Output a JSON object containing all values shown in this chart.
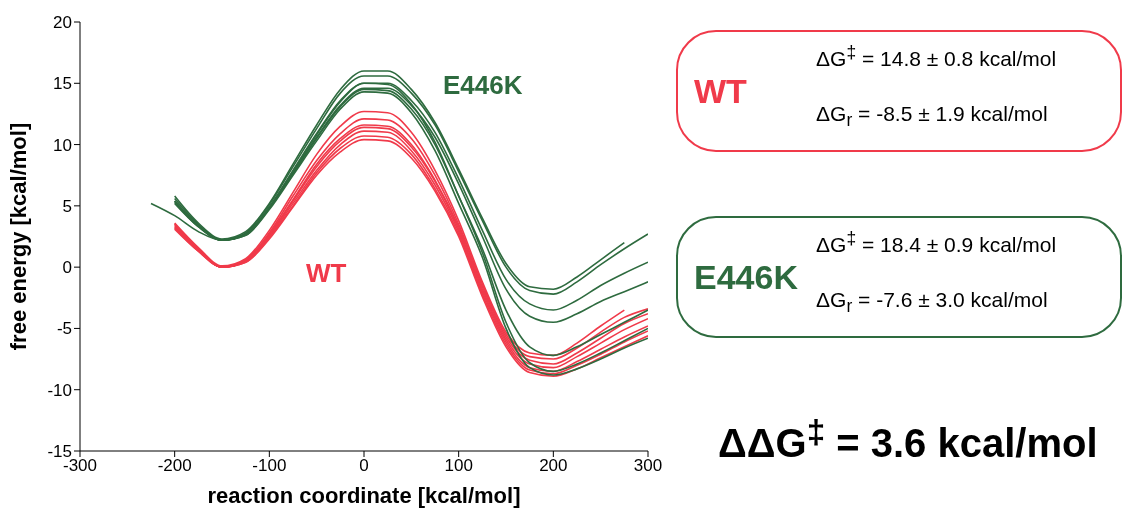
{
  "chart_data": {
    "type": "line",
    "xlabel": "reaction coordinate [kcal/mol]",
    "ylabel": "free energy [kcal/mol]",
    "x": [
      -225,
      -200,
      -175,
      -150,
      -125,
      -100,
      -75,
      -50,
      -25,
      0,
      25,
      50,
      75,
      100,
      125,
      150,
      175,
      200,
      225,
      250,
      275,
      300
    ],
    "xlim": [
      -300,
      300
    ],
    "xticks": [
      -300,
      -200,
      -100,
      0,
      100,
      200,
      300
    ],
    "ylim": [
      -15,
      20
    ],
    "yticks": [
      -15,
      -10,
      -5,
      0,
      5,
      10,
      15,
      20
    ],
    "legend": false,
    "series": [
      {
        "name": "WT",
        "color": "#f03a4a",
        "values": [
          null,
          3.6,
          1.6,
          0.1,
          0.7,
          3.0,
          6.1,
          9.2,
          11.5,
          12.7,
          12.6,
          11.0,
          7.9,
          3.8,
          -1.2,
          -5.3,
          -7.0,
          -7.2,
          -6.2,
          -4.8,
          -3.5,
          null
        ]
      },
      {
        "color": "#f03a4a",
        "values": [
          null,
          3.5,
          1.5,
          0.0,
          0.6,
          2.8,
          5.8,
          8.7,
          10.9,
          12.1,
          12.0,
          10.5,
          7.5,
          3.5,
          -1.4,
          -5.5,
          -7.3,
          -7.5,
          -6.6,
          -5.3,
          -4.1,
          -3.4
        ]
      },
      {
        "color": "#f03a4a",
        "values": [
          null,
          3.5,
          1.5,
          0.0,
          0.5,
          2.7,
          5.5,
          8.4,
          10.5,
          11.6,
          11.5,
          10.0,
          7.1,
          3.3,
          -1.6,
          -5.7,
          -7.6,
          -7.9,
          -7.0,
          -5.8,
          -4.6,
          -3.8
        ]
      },
      {
        "color": "#f03a4a",
        "values": [
          null,
          3.4,
          1.4,
          0.0,
          0.5,
          2.6,
          5.4,
          8.2,
          10.3,
          11.4,
          11.3,
          9.8,
          7.0,
          3.1,
          -1.8,
          -5.9,
          -7.9,
          -8.2,
          -7.3,
          -6.2,
          -5.1,
          -4.2
        ]
      },
      {
        "color": "#f03a4a",
        "values": [
          null,
          3.3,
          1.4,
          0.0,
          0.5,
          2.5,
          5.2,
          7.9,
          10.0,
          11.1,
          11.0,
          9.5,
          6.7,
          2.9,
          -2.0,
          -6.1,
          -8.2,
          -8.5,
          -7.7,
          -6.7,
          -5.7,
          -4.8
        ]
      },
      {
        "color": "#f03a4a",
        "values": [
          null,
          3.2,
          1.3,
          0.0,
          0.4,
          2.4,
          5.0,
          7.7,
          9.7,
          10.7,
          10.6,
          9.2,
          6.4,
          2.7,
          -2.2,
          -6.3,
          -8.4,
          -8.7,
          -8.0,
          -7.1,
          -6.1,
          -5.2
        ]
      },
      {
        "color": "#f03a4a",
        "values": [
          null,
          3.1,
          1.3,
          0.0,
          0.4,
          2.3,
          4.9,
          7.5,
          9.4,
          10.4,
          10.3,
          8.9,
          6.2,
          2.5,
          -2.4,
          -6.5,
          -8.6,
          -8.9,
          -8.3,
          -7.4,
          -6.5,
          -5.6
        ]
      },
      {
        "name": "E446K",
        "color": "#2e6b3f",
        "values": [
          null,
          5.8,
          3.6,
          2.3,
          2.9,
          5.2,
          8.4,
          11.6,
          14.5,
          16.0,
          16.0,
          14.5,
          11.8,
          8.0,
          4.0,
          0.3,
          -1.6,
          -1.8,
          -0.8,
          0.6,
          2.0,
          null
        ]
      },
      {
        "color": "#2e6b3f",
        "values": [
          null,
          5.6,
          3.5,
          2.2,
          2.8,
          5.1,
          8.2,
          11.3,
          14.2,
          15.6,
          15.6,
          14.2,
          11.6,
          7.8,
          3.8,
          0.0,
          -1.9,
          -2.2,
          -1.2,
          0.2,
          1.5,
          2.7
        ]
      },
      {
        "color": "#2e6b3f",
        "values": [
          null,
          5.4,
          3.4,
          2.2,
          2.7,
          4.9,
          7.9,
          10.9,
          13.6,
          15.0,
          15.0,
          13.6,
          11.0,
          7.2,
          3.0,
          -1.0,
          -3.0,
          -3.5,
          -2.7,
          -1.5,
          -0.5,
          0.4
        ]
      },
      {
        "color": "#2e6b3f",
        "values": [
          null,
          5.3,
          3.3,
          2.2,
          2.7,
          4.8,
          7.7,
          10.6,
          13.2,
          14.6,
          14.6,
          13.2,
          10.6,
          6.8,
          2.5,
          -1.8,
          -4.0,
          -4.5,
          -3.8,
          -2.8,
          -2.0,
          -1.2
        ]
      },
      {
        "color": "#2e6b3f",
        "values": [
          null,
          5.2,
          3.3,
          2.2,
          2.6,
          4.8,
          7.6,
          10.5,
          13.1,
          14.5,
          14.4,
          12.9,
          10.0,
          5.8,
          1.5,
          -3.5,
          -6.5,
          -7.2,
          -6.5,
          -5.5,
          -4.5,
          -3.5
        ]
      },
      {
        "color": "#2e6b3f",
        "values": [
          null,
          5.4,
          3.4,
          2.2,
          2.7,
          4.9,
          7.8,
          10.8,
          13.5,
          15.0,
          14.9,
          13.3,
          10.2,
          5.8,
          1.2,
          -4.5,
          -7.8,
          -8.5,
          -7.9,
          -7.0,
          -6.0,
          -5.0
        ]
      },
      {
        "color": "#2e6b3f",
        "values": [
          5.2,
          4.2,
          2.9,
          2.2,
          2.6,
          4.7,
          7.5,
          10.3,
          12.9,
          14.3,
          14.2,
          12.6,
          9.5,
          5.2,
          0.8,
          -5.0,
          -8.2,
          -8.8,
          -8.3,
          -7.5,
          -6.6,
          -5.8
        ]
      }
    ],
    "annotations": [
      "WT",
      "ΔG$^{‡}$ = 14.8 ± 0.8 kcal/mol",
      "ΔG$_{r}$ = -8.5 ± 1.9 kcal/mol",
      "E446K",
      "ΔG$^{‡}$ = 18.4 ± 0.9 kcal/mol",
      "ΔG$_{r}$ = -7.6 ± 3.0 kcal/mol",
      "ΔΔG$^{‡}$ = 3.6 kcal/mol"
    ]
  }
}
